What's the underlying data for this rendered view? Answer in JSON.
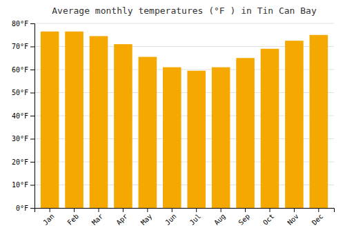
{
  "chart_data": {
    "type": "bar",
    "title": "Average monthly temperatures (°F ) in Tin Can Bay",
    "categories": [
      "Jan",
      "Feb",
      "Mar",
      "Apr",
      "May",
      "Jun",
      "Jul",
      "Aug",
      "Sep",
      "Oct",
      "Nov",
      "Dec"
    ],
    "values": [
      76.5,
      76.5,
      74.5,
      71,
      65.5,
      61,
      59.5,
      61,
      65,
      69,
      72.5,
      75
    ],
    "color": "#F5A800",
    "ylim": [
      0,
      80
    ],
    "yticks": [
      {
        "value": 0,
        "label": "0°F"
      },
      {
        "value": 10,
        "label": "10°F"
      },
      {
        "value": 20,
        "label": "20°F"
      },
      {
        "value": 30,
        "label": "30°F"
      },
      {
        "value": 40,
        "label": "40°F"
      },
      {
        "value": 50,
        "label": "50°F"
      },
      {
        "value": 60,
        "label": "60°F"
      },
      {
        "value": 70,
        "label": "70°F"
      },
      {
        "value": 80,
        "label": "80°F"
      }
    ],
    "grid": true
  }
}
